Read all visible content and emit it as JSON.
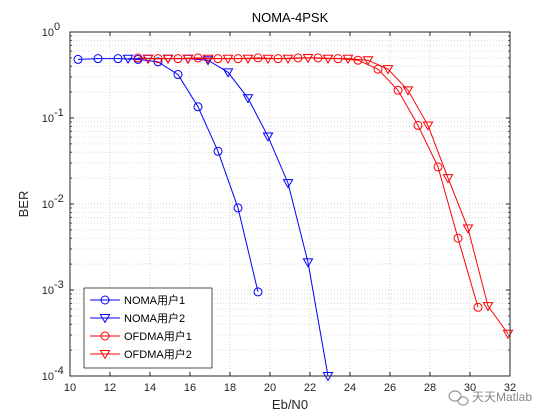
{
  "chart_data": {
    "type": "line",
    "title": "NOMA-4PSK",
    "xlabel": "Eb/N0",
    "ylabel": "BER",
    "xlim": [
      10,
      32
    ],
    "ylim_log10": [
      -4,
      0
    ],
    "y_scale": "log",
    "grid": true,
    "legend_position": "bottom-left",
    "x_ticks": [
      "10",
      "12",
      "14",
      "16",
      "18",
      "20",
      "22",
      "24",
      "26",
      "28",
      "30",
      "32"
    ],
    "y_ticks": [
      {
        "base": "10",
        "exp": "0"
      },
      {
        "base": "10",
        "exp": "-1"
      },
      {
        "base": "10",
        "exp": "-2"
      },
      {
        "base": "10",
        "exp": "-3"
      },
      {
        "base": "10",
        "exp": "-4"
      }
    ],
    "series": [
      {
        "name": "NOMA用户1",
        "color": "#0000ff",
        "marker": "circle",
        "x": [
          10.4,
          11.4,
          12.4,
          13.4,
          14.4,
          15.4,
          16.4,
          17.4,
          18.4,
          19.4
        ],
        "y": [
          0.48,
          0.49,
          0.49,
          0.48,
          0.45,
          0.32,
          0.135,
          0.041,
          0.009,
          0.00095
        ]
      },
      {
        "name": "NOMA用户2",
        "color": "#0000ff",
        "marker": "triangle-down",
        "x": [
          12.9,
          13.9,
          14.9,
          15.9,
          16.9,
          17.9,
          18.9,
          19.9,
          20.9,
          21.9,
          22.9
        ],
        "y": [
          0.49,
          0.49,
          0.49,
          0.49,
          0.47,
          0.34,
          0.17,
          0.061,
          0.0175,
          0.0021,
          0.0001
        ]
      },
      {
        "name": "OFDMA用户1",
        "color": "#ff0000",
        "marker": "circle",
        "x": [
          13.4,
          14.4,
          15.4,
          16.4,
          17.4,
          18.4,
          19.4,
          20.4,
          21.4,
          22.4,
          23.4,
          24.4,
          25.4,
          26.4,
          27.4,
          28.4,
          29.4,
          30.4
        ],
        "y": [
          0.5,
          0.49,
          0.49,
          0.5,
          0.49,
          0.49,
          0.5,
          0.49,
          0.5,
          0.5,
          0.49,
          0.47,
          0.37,
          0.21,
          0.082,
          0.027,
          0.004,
          0.00063
        ]
      },
      {
        "name": "OFDMA用户2",
        "color": "#ff0000",
        "marker": "triangle-down",
        "x": [
          13.9,
          14.9,
          15.9,
          16.9,
          17.9,
          18.9,
          19.9,
          20.9,
          21.9,
          22.9,
          23.9,
          24.9,
          25.9,
          26.9,
          27.9,
          28.9,
          29.9,
          30.9,
          31.9
        ],
        "y": [
          0.49,
          0.49,
          0.49,
          0.49,
          0.49,
          0.49,
          0.49,
          0.49,
          0.5,
          0.49,
          0.49,
          0.47,
          0.37,
          0.21,
          0.082,
          0.02,
          0.0052,
          0.00065,
          0.00031
        ]
      }
    ]
  },
  "watermark": "天天Matlab"
}
